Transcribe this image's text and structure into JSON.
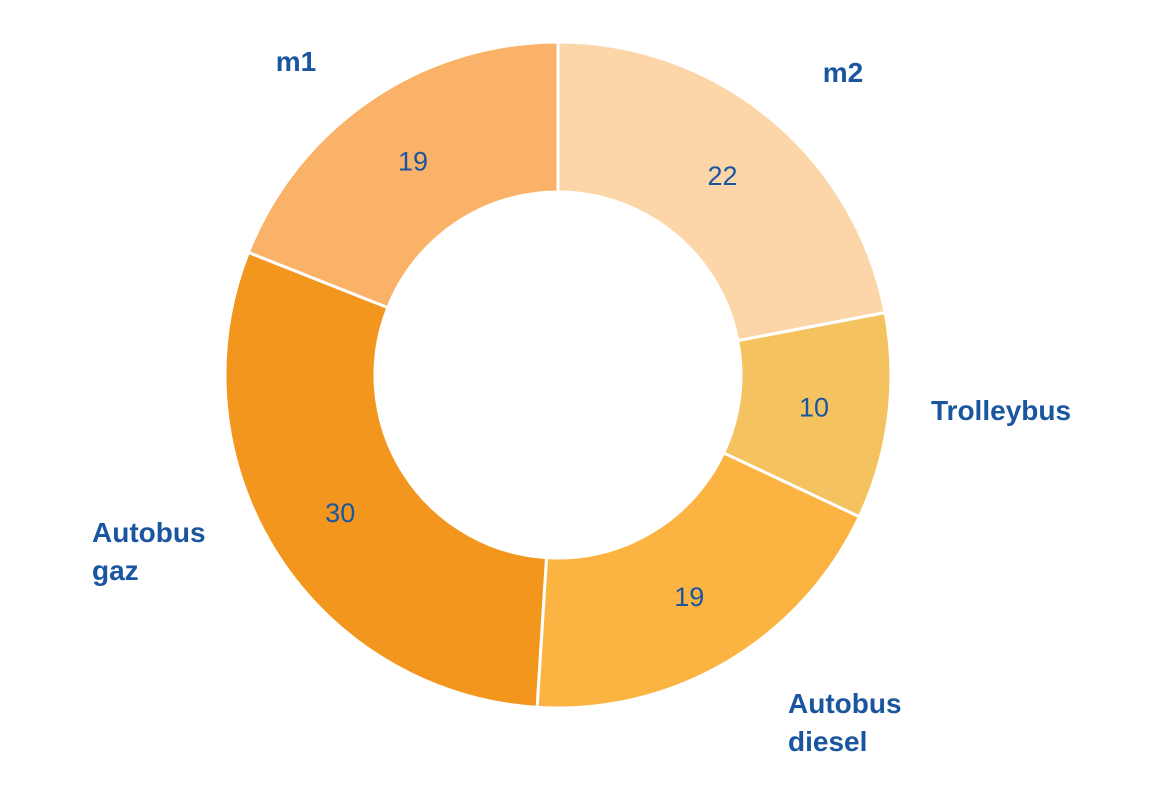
{
  "chart_data": {
    "type": "pie",
    "subtype": "donut",
    "title": "",
    "legend_position": "none",
    "start_angle_deg": 0,
    "direction": "clockwise",
    "hole_ratio": 0.55,
    "label_color": "#1A56A0",
    "slice_border_color": "#FFFFFF",
    "total": 100,
    "categories": [
      "m2",
      "Trolleybus",
      "Autobus diesel",
      "Autobus gaz",
      "m1"
    ],
    "values": [
      22,
      10,
      19,
      30,
      19
    ],
    "slices": [
      {
        "label": "m2",
        "value": 22,
        "color": "#FCD6A8"
      },
      {
        "label": "Trolleybus",
        "value": 10,
        "color": "#F4C360"
      },
      {
        "label": "Autobus diesel",
        "value": 19,
        "color": "#FBB342"
      },
      {
        "label": "Autobus gaz",
        "value": 30,
        "color": "#F2961D"
      },
      {
        "label": "m1",
        "value": 19,
        "color": "#F9B267"
      }
    ]
  }
}
